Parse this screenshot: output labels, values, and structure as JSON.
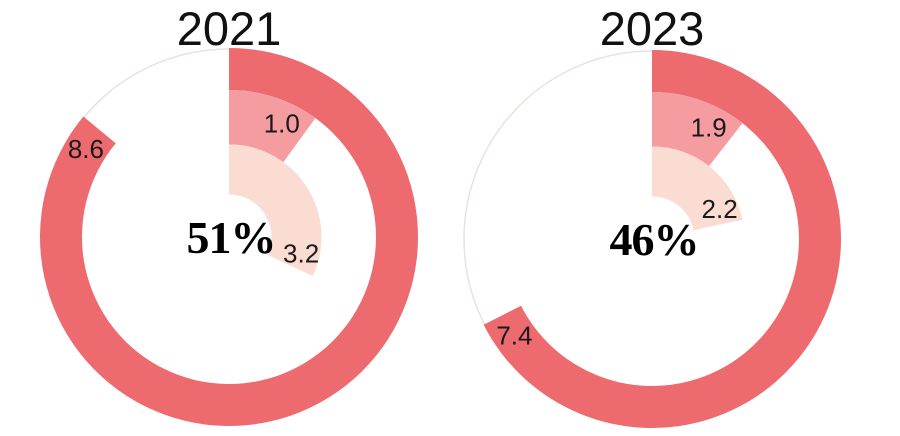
{
  "page": {
    "background": "#ffffff"
  },
  "colors": {
    "strong_red": "#ED6A6F",
    "medium_pink": "#F59CA1",
    "light_pink": "#FBDCD3",
    "track_outline": "#E9E2DE",
    "text": "#111111"
  },
  "chart_data": [
    {
      "type": "donut",
      "title": "2021",
      "center_label": "51%",
      "center_value": 51,
      "legend_position": "none",
      "rings": [
        {
          "name": "outer-ring",
          "label": "8.6",
          "value": 8.6,
          "sweep_deg": 309.6,
          "color": "#ED6A6F"
        },
        {
          "name": "middle-ring",
          "label": "1.0",
          "value": 1.0,
          "sweep_deg": 36,
          "color": "#F59CA1"
        },
        {
          "name": "inner-ring",
          "label": "3.2",
          "value": 3.2,
          "sweep_deg": 115,
          "color": "#FBDCD3"
        }
      ]
    },
    {
      "type": "donut",
      "title": "2023",
      "center_label": "46%",
      "center_value": 46,
      "legend_position": "none",
      "rings": [
        {
          "name": "outer-ring",
          "label": "7.4",
          "value": 7.4,
          "sweep_deg": 243,
          "color": "#ED6A6F"
        },
        {
          "name": "middle-ring",
          "label": "1.9",
          "value": 1.9,
          "sweep_deg": 38,
          "color": "#F59CA1"
        },
        {
          "name": "inner-ring",
          "label": "2.2",
          "value": 2.2,
          "sweep_deg": 78,
          "color": "#FBDCD3"
        }
      ]
    }
  ]
}
